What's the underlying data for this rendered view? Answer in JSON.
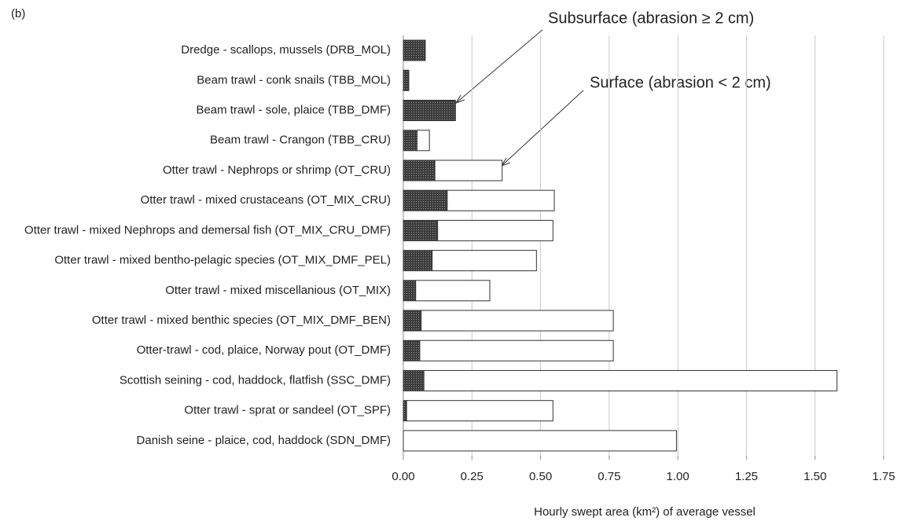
{
  "chart_data": {
    "type": "stacked-barh",
    "panel_label": "(b)",
    "xlabel": "Hourly swept area (km²) of average vessel",
    "categories": [
      "Dredge - scallops, mussels (DRB_MOL)",
      "Beam trawl - conk snails (TBB_MOL)",
      "Beam trawl - sole, plaice (TBB_DMF)",
      "Beam trawl - Crangon (TBB_CRU)",
      "Otter trawl - Nephrops or shrimp (OT_CRU)",
      "Otter trawl - mixed crustaceans (OT_MIX_CRU)",
      "Otter trawl - mixed Nephrops and demersal fish (OT_MIX_CRU_DMF)",
      "Otter trawl - mixed bentho-pelagic species (OT_MIX_DMF_PEL)",
      "Otter trawl - mixed miscellanious (OT_MIX)",
      "Otter trawl - mixed benthic species (OT_MIX_DMF_BEN)",
      "Otter-trawl - cod, plaice, Norway pout (OT_DMF)",
      "Scottish seining - cod, haddock, flatfish (SSC_DMF)",
      "Otter trawl - sprat or sandeel (OT_SPF)",
      "Danish seine - plaice, cod, haddock (SDN_DMF)"
    ],
    "series": [
      {
        "name": "Subsurface (abrasion ≥ 2 cm)",
        "color": "#3c3c3c",
        "values": [
          0.08,
          0.02,
          0.19,
          0.05,
          0.115,
          0.16,
          0.125,
          0.105,
          0.045,
          0.065,
          0.06,
          0.075,
          0.012,
          0
        ]
      },
      {
        "name": "Surface (abrasion < 2 cm)",
        "color": "#ffffff",
        "values": [
          0,
          0,
          0,
          0.045,
          0.245,
          0.39,
          0.42,
          0.38,
          0.27,
          0.7,
          0.705,
          1.505,
          0.533,
          0.995
        ]
      }
    ],
    "xlim": [
      0,
      1.75
    ],
    "xticks": [
      {
        "value": 0,
        "label": "0.00"
      },
      {
        "value": 0.25,
        "label": "0.25"
      },
      {
        "value": 0.5,
        "label": "0.50"
      },
      {
        "value": 0.75,
        "label": "0.75"
      },
      {
        "value": 1,
        "label": "1.00"
      },
      {
        "value": 1.25,
        "label": "1.25"
      },
      {
        "value": 1.5,
        "label": "1.50"
      },
      {
        "value": 1.75,
        "label": "1.75"
      }
    ],
    "grid": true
  }
}
